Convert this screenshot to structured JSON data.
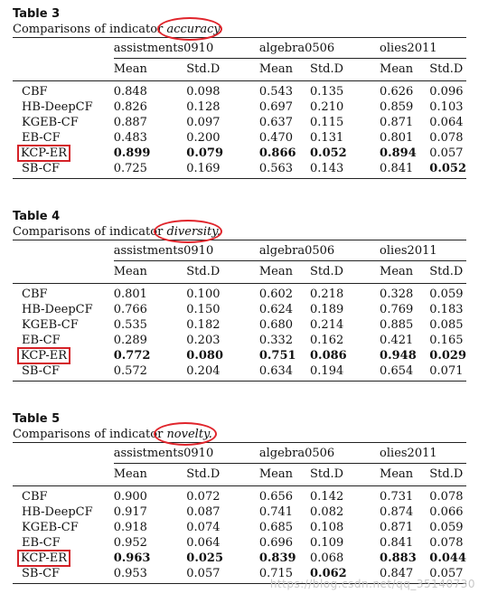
{
  "tables": [
    {
      "title": "Table 3",
      "caption_prefix": "Comparisons of indicator ",
      "caption_indicator": "accuracy",
      "caption_suffix": ".",
      "datasets": [
        "assistments0910",
        "algebra0506",
        "olies2011"
      ],
      "sub_headers": [
        "Mean",
        "Std.D"
      ],
      "rows": [
        {
          "name": "CBF",
          "values": [
            "0.848",
            "0.098",
            "0.543",
            "0.135",
            "0.626",
            "0.096"
          ]
        },
        {
          "name": "HB-DeepCF",
          "values": [
            "0.826",
            "0.128",
            "0.697",
            "0.210",
            "0.859",
            "0.103"
          ]
        },
        {
          "name": "KGEB-CF",
          "values": [
            "0.887",
            "0.097",
            "0.637",
            "0.115",
            "0.871",
            "0.064"
          ]
        },
        {
          "name": "EB-CF",
          "values": [
            "0.483",
            "0.200",
            "0.470",
            "0.131",
            "0.801",
            "0.078"
          ]
        },
        {
          "name": "KCP-ER",
          "values": [
            "0.899",
            "0.079",
            "0.866",
            "0.052",
            "0.894",
            "0.057"
          ]
        },
        {
          "name": "SB-CF",
          "values": [
            "0.725",
            "0.169",
            "0.563",
            "0.143",
            "0.841",
            "0.052"
          ]
        }
      ]
    },
    {
      "title": "Table 4",
      "caption_prefix": "Comparisons of indicator ",
      "caption_indicator": "diversity",
      "caption_suffix": ".",
      "datasets": [
        "assistments0910",
        "algebra0506",
        "olies2011"
      ],
      "sub_headers": [
        "Mean",
        "Std.D"
      ],
      "rows": [
        {
          "name": "CBF",
          "values": [
            "0.801",
            "0.100",
            "0.602",
            "0.218",
            "0.328",
            "0.059"
          ]
        },
        {
          "name": "HB-DeepCF",
          "values": [
            "0.766",
            "0.150",
            "0.624",
            "0.189",
            "0.769",
            "0.183"
          ]
        },
        {
          "name": "KGEB-CF",
          "values": [
            "0.535",
            "0.182",
            "0.680",
            "0.214",
            "0.885",
            "0.085"
          ]
        },
        {
          "name": "EB-CF",
          "values": [
            "0.289",
            "0.203",
            "0.332",
            "0.162",
            "0.421",
            "0.165"
          ]
        },
        {
          "name": "KCP-ER",
          "values": [
            "0.772",
            "0.080",
            "0.751",
            "0.086",
            "0.948",
            "0.029"
          ]
        },
        {
          "name": "SB-CF",
          "values": [
            "0.572",
            "0.204",
            "0.634",
            "0.194",
            "0.654",
            "0.071"
          ]
        }
      ]
    },
    {
      "title": "Table 5",
      "caption_prefix": "Comparisons of indicator ",
      "caption_indicator": "novelty",
      "caption_suffix": ".",
      "datasets": [
        "assistments0910",
        "algebra0506",
        "olies2011"
      ],
      "sub_headers": [
        "Mean",
        "Std.D"
      ],
      "rows": [
        {
          "name": "CBF",
          "values": [
            "0.900",
            "0.072",
            "0.656",
            "0.142",
            "0.731",
            "0.078"
          ]
        },
        {
          "name": "HB-DeepCF",
          "values": [
            "0.917",
            "0.087",
            "0.741",
            "0.082",
            "0.874",
            "0.066"
          ]
        },
        {
          "name": "KGEB-CF",
          "values": [
            "0.918",
            "0.074",
            "0.685",
            "0.108",
            "0.871",
            "0.059"
          ]
        },
        {
          "name": "EB-CF",
          "values": [
            "0.952",
            "0.064",
            "0.696",
            "0.109",
            "0.841",
            "0.078"
          ]
        },
        {
          "name": "KCP-ER",
          "values": [
            "0.963",
            "0.025",
            "0.839",
            "0.068",
            "0.883",
            "0.044"
          ]
        },
        {
          "name": "SB-CF",
          "values": [
            "0.953",
            "0.057",
            "0.715",
            "0.062",
            "0.847",
            "0.057"
          ]
        }
      ]
    }
  ],
  "watermark": "https://blog.csdn.net/qq_35140730",
  "colors": {
    "highlight": "#e0242b"
  }
}
